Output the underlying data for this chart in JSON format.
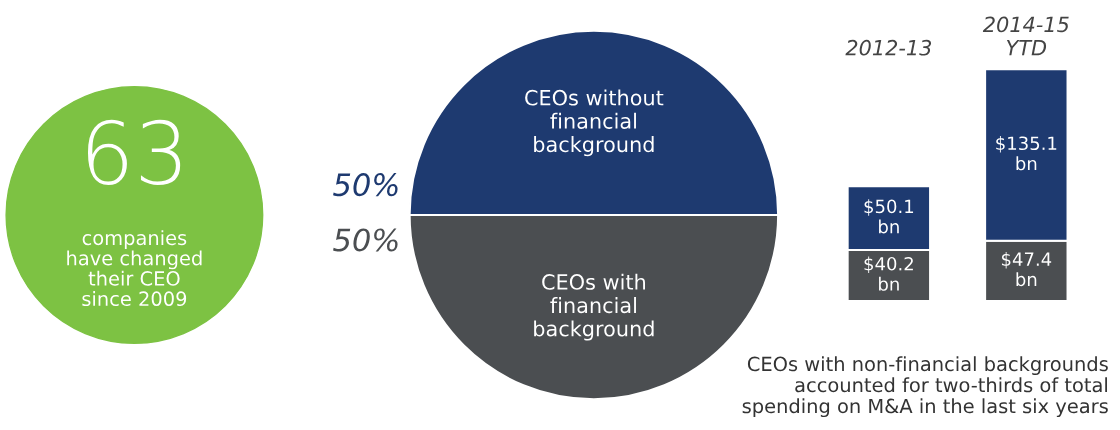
{
  "chart_data": [
    {
      "type": "other",
      "color": "#7dc243",
      "annotations": [
        "63",
        "companies\nhave changed\ntheir CEO\nsince 2009"
      ]
    },
    {
      "type": "pie",
      "categories": [
        "CEOs without\nfinancial\nbackground",
        "CEOs with\nfinancial\nbackground"
      ],
      "values": [
        50,
        50
      ],
      "value_labels": [
        "50%",
        "50%"
      ],
      "colors": [
        "#1e3a70",
        "#4b4e51"
      ],
      "legend": false
    },
    {
      "type": "bar",
      "stacked": true,
      "categories": [
        "2012-13",
        "2014-15\nYTD"
      ],
      "legend": false,
      "series": [
        {
          "color": "#4b4e51",
          "values": [
            40.2,
            47.4
          ],
          "value_labels": [
            "$40.2 bn",
            "$47.4 bn"
          ]
        },
        {
          "color": "#1e3a70",
          "values": [
            50.1,
            135.1
          ],
          "value_labels": [
            "$50.1 bn",
            "$135.1 bn"
          ]
        }
      ],
      "annotations": [
        "CEOs with non-financial backgrounds\naccounted for two-thirds of total\nspending on M&A in the last six years"
      ]
    }
  ]
}
